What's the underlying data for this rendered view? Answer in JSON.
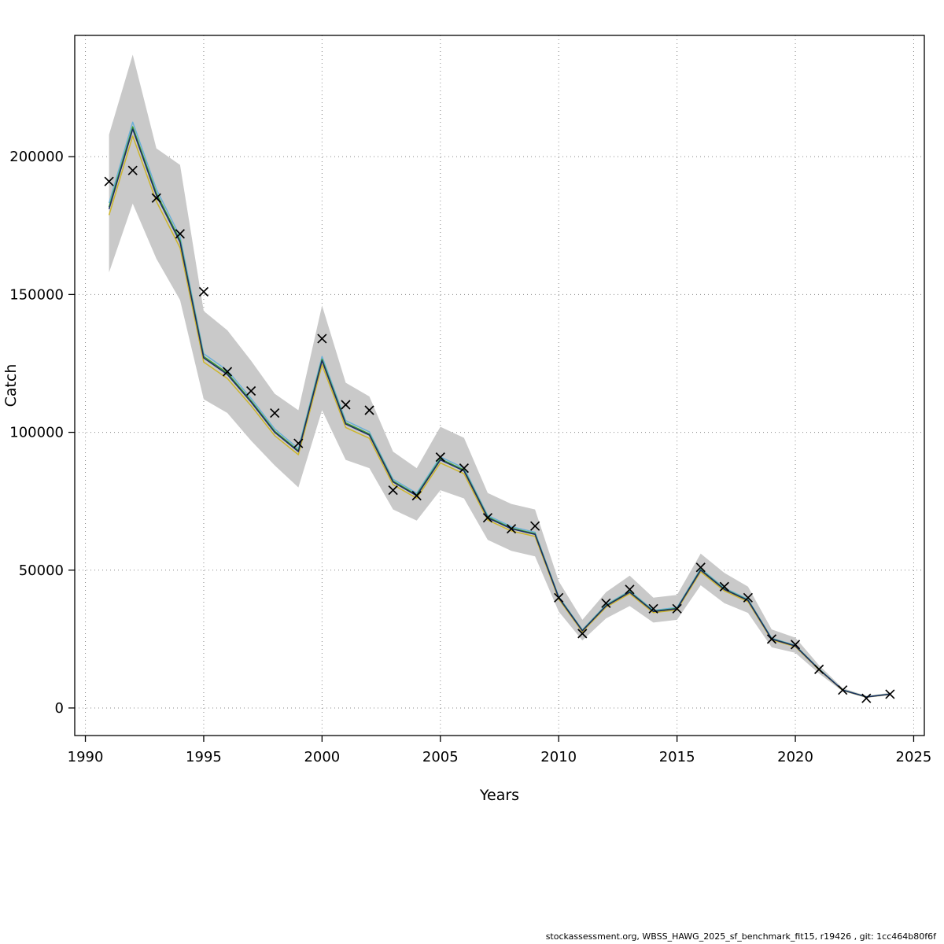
{
  "footer": {
    "text": "stockassessment.org, WBSS_HAWG_2025_sf_benchmark_fit15, r19426 , git: 1cc464b80f6f"
  },
  "chart_data": {
    "type": "line",
    "title": "",
    "xlabel": "Years",
    "ylabel": "Catch",
    "xlim": [
      1989.55,
      2025.45
    ],
    "ylim": [
      -10000,
      244000
    ],
    "x_ticks": [
      1990,
      1995,
      2000,
      2005,
      2010,
      2015,
      2020,
      2025
    ],
    "x_tick_labels": [
      "1990",
      "1995",
      "2000",
      "2005",
      "2010",
      "2015",
      "2020",
      "2025"
    ],
    "y_ticks": [
      0,
      50000,
      100000,
      150000,
      200000
    ],
    "y_tick_labels": [
      "0",
      "50000",
      "100000",
      "150000",
      "200000"
    ],
    "grid": "dotted",
    "grid_color": "#888888",
    "band_color": "#c9c9c9",
    "legend_position": "none",
    "marker": "x",
    "marker_color": "#000000",
    "years": [
      1991,
      1992,
      1993,
      1994,
      1995,
      1996,
      1997,
      1998,
      1999,
      2000,
      2001,
      2002,
      2003,
      2004,
      2005,
      2006,
      2007,
      2008,
      2009,
      2010,
      2011,
      2012,
      2013,
      2014,
      2015,
      2016,
      2017,
      2018,
      2019,
      2020,
      2021,
      2022,
      2023,
      2024
    ],
    "observed": [
      191000,
      195000,
      185000,
      172000,
      151000,
      122000,
      115000,
      107000,
      96000,
      134000,
      110000,
      108000,
      79000,
      77000,
      91000,
      87000,
      69000,
      65000,
      66000,
      40000,
      27000,
      38000,
      43000,
      36000,
      36000,
      51000,
      44000,
      40000,
      25000,
      23000,
      14000,
      6500,
      3500,
      5000
    ],
    "fitted": [
      181000,
      210000,
      186000,
      169000,
      127000,
      121000,
      111000,
      100000,
      93000,
      126000,
      103000,
      99000,
      82000,
      77000,
      90000,
      86000,
      69000,
      65000,
      63000,
      40000,
      28000,
      37000,
      42000,
      35000,
      36000,
      50000,
      43000,
      39000,
      25000,
      22500,
      14000,
      6500,
      4000,
      5000
    ],
    "ci_lower": [
      158000,
      183000,
      163000,
      148000,
      112000,
      107000,
      97000,
      88000,
      80000,
      108000,
      90000,
      87000,
      72000,
      68000,
      79000,
      76000,
      61000,
      57000,
      55000,
      35000,
      24500,
      32500,
      37000,
      31000,
      32000,
      44500,
      38000,
      34500,
      22000,
      20000,
      12500,
      6000,
      3700,
      4600
    ],
    "ci_upper": [
      208000,
      237000,
      203000,
      197000,
      144000,
      137000,
      126000,
      114000,
      108000,
      146000,
      118000,
      113000,
      93000,
      87000,
      102000,
      98000,
      78000,
      74000,
      72000,
      46000,
      32000,
      42000,
      48000,
      40000,
      41000,
      56000,
      49000,
      44000,
      28500,
      25500,
      15500,
      7200,
      4400,
      5500
    ],
    "series": [
      {
        "name": "fit-lightblue",
        "color": "#6ab0d8",
        "scale": 1.012
      },
      {
        "name": "fit-yellow",
        "color": "#cdb62c",
        "scale": 0.988
      },
      {
        "name": "fit-green",
        "color": "#3a9e2c",
        "scale": 1.004
      },
      {
        "name": "fit-navy",
        "color": "#1c2a66",
        "scale": 1.0
      }
    ]
  }
}
